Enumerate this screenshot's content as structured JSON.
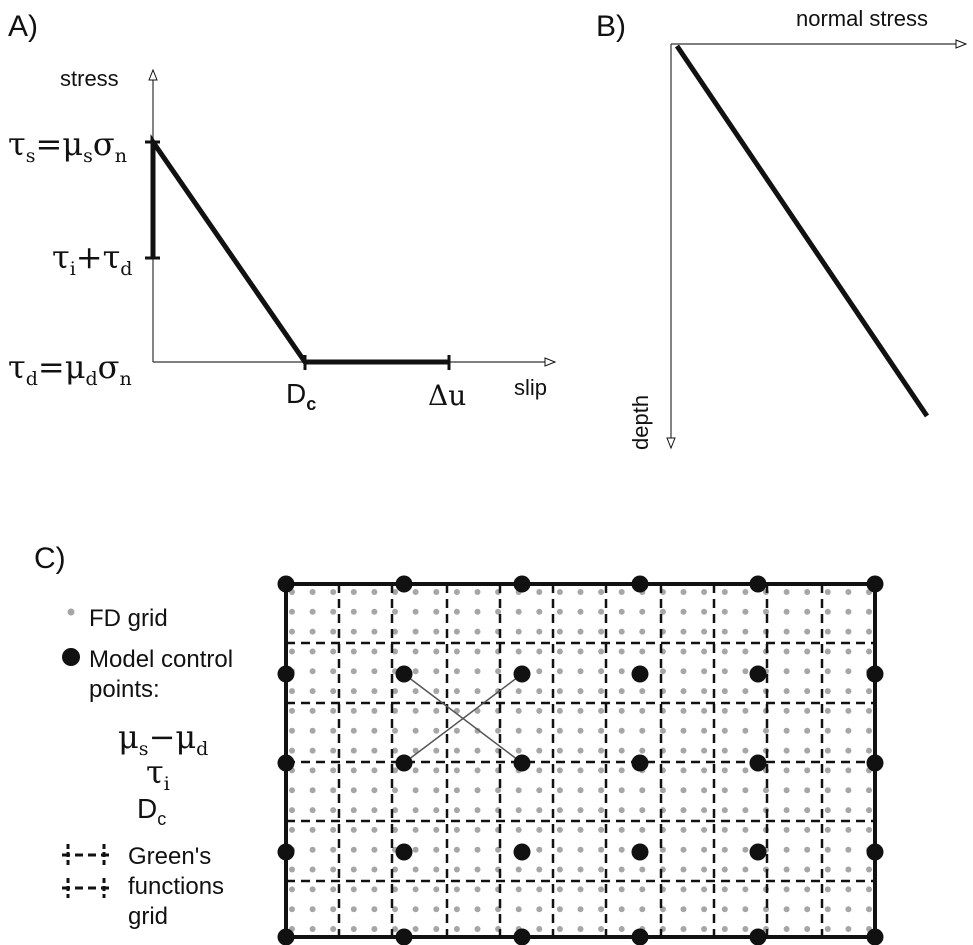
{
  "panels": {
    "a": {
      "tag": "A)",
      "y_axis_label": "stress",
      "x_axis_label": "slip",
      "tau_s_expr": {
        "tau": "τ",
        "sub_s": "s",
        "eq": "=",
        "mu": "μ",
        "sub_s2": "s",
        "sigma": "σ",
        "sub_n": "n"
      },
      "tau_id_expr": {
        "tau": "τ",
        "sub_i": "i",
        "plus": "+",
        "tau2": "τ",
        "sub_d": "d"
      },
      "tau_d_expr": {
        "tau": "τ",
        "sub_d": "d",
        "eq": "=",
        "mu": "μ",
        "sub_d2": "d",
        "sigma": "σ",
        "sub_n": "n"
      },
      "dc_label": {
        "main": "D",
        "sub": "c"
      },
      "du_label": "Δu"
    },
    "b": {
      "tag": "B)",
      "x_axis_label": "normal stress",
      "y_axis_label": "depth"
    },
    "c": {
      "tag": "C)",
      "legend": {
        "fd_grid": "FD grid",
        "control_line1": "Model control",
        "control_line2": "points:",
        "param1": {
          "mu": "μ",
          "sub_s": "s",
          "minus": "−",
          "mu2": "μ",
          "sub_d": "d"
        },
        "param2": {
          "tau": "τ",
          "sub_i": "i"
        },
        "param3": {
          "main": "D",
          "sub": "c"
        },
        "green_line1": "Green's",
        "green_line2": "functions",
        "green_line3": "grid"
      }
    }
  },
  "colors": {
    "ink": "#111111",
    "fd_dot": "#a6a6a6"
  }
}
